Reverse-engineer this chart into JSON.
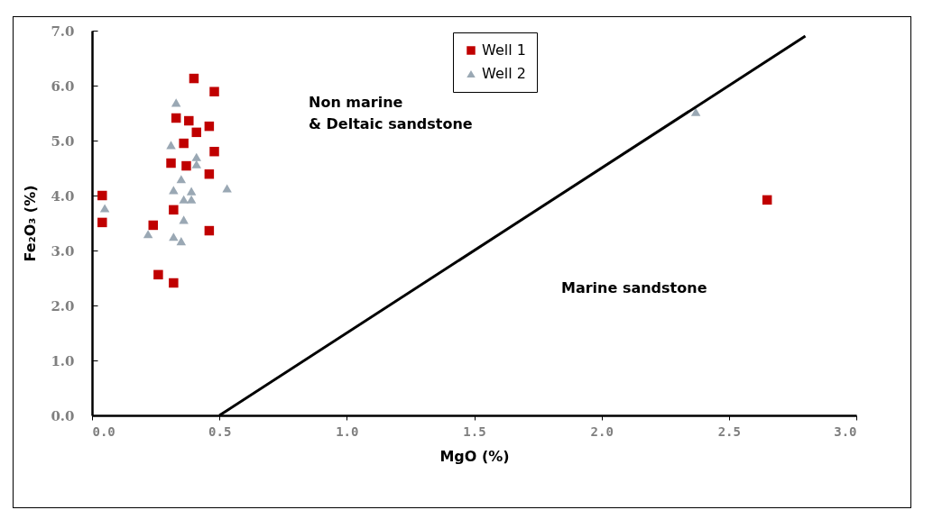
{
  "chart_data": {
    "type": "scatter",
    "xlabel": "MgO (%)",
    "ylabel": "Fe₂O₃ (%)",
    "xlim": [
      0,
      3
    ],
    "ylim": [
      0,
      7
    ],
    "xticks": [
      {
        "value": 0,
        "label": "0.0"
      },
      {
        "value": 0.5,
        "label": "0.5"
      },
      {
        "value": 1,
        "label": "1.0"
      },
      {
        "value": 1.5,
        "label": "1.5"
      },
      {
        "value": 2,
        "label": "2.0"
      },
      {
        "value": 2.5,
        "label": "2.5"
      },
      {
        "value": 3,
        "label": "3.0"
      }
    ],
    "yticks": [
      {
        "value": 0,
        "label": "0.0"
      },
      {
        "value": 1,
        "label": "1.0"
      },
      {
        "value": 2,
        "label": "2.0"
      },
      {
        "value": 3,
        "label": "3.0"
      },
      {
        "value": 4,
        "label": "4.0"
      },
      {
        "value": 5,
        "label": "5.0"
      },
      {
        "value": 6,
        "label": "6.0"
      },
      {
        "value": 7,
        "label": "7.0"
      }
    ],
    "legend": "top",
    "grid": false,
    "annotations": [
      "Non marine\n& Deltaic sandstone",
      "Marine sandstone"
    ],
    "series": [
      {
        "name": "Well 1",
        "color": "#c00000",
        "marker": "square",
        "x": [
          0.4,
          0.48,
          0.33,
          0.38,
          0.41,
          0.46,
          0.36,
          0.48,
          0.31,
          0.37,
          0.46,
          0.04,
          0.04,
          0.32,
          0.24,
          0.46,
          0.26,
          0.32,
          2.65
        ],
        "values": [
          6.13,
          5.89,
          5.41,
          5.36,
          5.15,
          5.26,
          4.95,
          4.8,
          4.59,
          4.54,
          4.39,
          4.0,
          3.51,
          3.74,
          3.46,
          3.36,
          2.56,
          2.41,
          3.92
        ]
      },
      {
        "name": "Well 2",
        "color": "#9aa8b4",
        "marker": "triangle",
        "x": [
          0.33,
          0.31,
          0.41,
          0.41,
          0.53,
          0.35,
          0.32,
          0.39,
          0.36,
          0.39,
          0.05,
          0.36,
          0.22,
          0.32,
          0.35,
          2.37
        ],
        "values": [
          5.69,
          4.92,
          4.7,
          4.57,
          4.13,
          4.3,
          4.1,
          4.08,
          3.93,
          3.93,
          3.77,
          3.56,
          3.3,
          3.25,
          3.17,
          5.52
        ]
      },
      {
        "type": "line",
        "color": "#000000",
        "x": [
          0.5,
          2.8
        ],
        "values": [
          0,
          6.9
        ]
      }
    ]
  }
}
